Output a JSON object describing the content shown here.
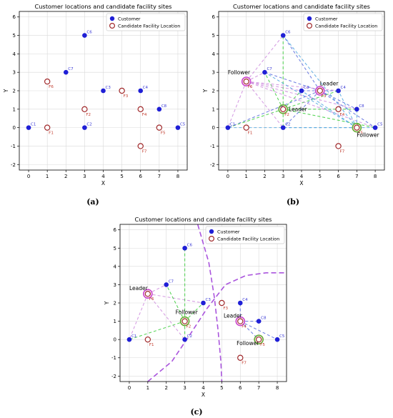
{
  "chart_data": [
    {
      "panel": "a",
      "type": "scatter",
      "title": "Customer locations and candidate facility sites",
      "xlabel": "X",
      "ylabel": "Y",
      "xlim": [
        -0.5,
        8.5
      ],
      "ylim": [
        -2.3,
        6.3
      ],
      "xticks": [
        0,
        1,
        2,
        3,
        4,
        5,
        6,
        7,
        8
      ],
      "yticks": [
        -2,
        -1,
        0,
        1,
        2,
        3,
        4,
        5,
        6
      ],
      "grid": true,
      "legend": {
        "position": "top-right",
        "entries": [
          "Customer",
          "Candidate Facility Location"
        ]
      },
      "customers": [
        {
          "name": "C1",
          "x": 0,
          "y": 0
        },
        {
          "name": "C2",
          "x": 3,
          "y": 0
        },
        {
          "name": "C3",
          "x": 4,
          "y": 2
        },
        {
          "name": "C4",
          "x": 6,
          "y": 2
        },
        {
          "name": "C5",
          "x": 8,
          "y": 0
        },
        {
          "name": "C6",
          "x": 3,
          "y": 5
        },
        {
          "name": "C7",
          "x": 2,
          "y": 3
        },
        {
          "name": "C8",
          "x": 7,
          "y": 1
        }
      ],
      "facilities": [
        {
          "name": "F1",
          "x": 1,
          "y": 0
        },
        {
          "name": "F2",
          "x": 3,
          "y": 1
        },
        {
          "name": "F3",
          "x": 5,
          "y": 2
        },
        {
          "name": "F4",
          "x": 6,
          "y": 1
        },
        {
          "name": "F5",
          "x": 7,
          "y": 0
        },
        {
          "name": "F6",
          "x": 1,
          "y": 2.5
        },
        {
          "name": "F7",
          "x": 6,
          "y": -1
        }
      ],
      "annotations": [],
      "connections": [],
      "curves": []
    },
    {
      "panel": "b",
      "type": "scatter",
      "title": "Customer locations and candidate facility sites",
      "xlabel": "X",
      "ylabel": "Y",
      "xlim": [
        -0.5,
        8.5
      ],
      "ylim": [
        -2.3,
        6.3
      ],
      "xticks": [
        0,
        1,
        2,
        3,
        4,
        5,
        6,
        7,
        8
      ],
      "yticks": [
        -2,
        -1,
        0,
        1,
        2,
        3,
        4,
        5,
        6
      ],
      "grid": true,
      "legend": {
        "position": "top-right",
        "entries": [
          "Customer",
          "Candidate Facility Location"
        ]
      },
      "customers": [
        {
          "name": "C1",
          "x": 0,
          "y": 0
        },
        {
          "name": "C2",
          "x": 3,
          "y": 0
        },
        {
          "name": "C3",
          "x": 4,
          "y": 2
        },
        {
          "name": "C4",
          "x": 6,
          "y": 2
        },
        {
          "name": "C5",
          "x": 8,
          "y": 0
        },
        {
          "name": "C6",
          "x": 3,
          "y": 5
        },
        {
          "name": "C7",
          "x": 2,
          "y": 3
        },
        {
          "name": "C8",
          "x": 7,
          "y": 1
        }
      ],
      "facilities": [
        {
          "name": "F1",
          "x": 1,
          "y": 0
        },
        {
          "name": "F2",
          "x": 3,
          "y": 1
        },
        {
          "name": "F3",
          "x": 5,
          "y": 2
        },
        {
          "name": "F4",
          "x": 6,
          "y": 1
        },
        {
          "name": "F5",
          "x": 7,
          "y": 0
        },
        {
          "name": "F6",
          "x": 1,
          "y": 2.5
        },
        {
          "name": "F7",
          "x": 6,
          "y": -1
        }
      ],
      "annotations": [
        {
          "text": "Follower",
          "x": 0,
          "y": 2.9
        },
        {
          "text": "Leader",
          "x": 5,
          "y": 2.3
        },
        {
          "text": "Leader",
          "x": 3.3,
          "y": 0.9
        },
        {
          "text": "Follower",
          "x": 7,
          "y": -0.5
        }
      ],
      "connections": [
        {
          "from": [
            3,
            1
          ],
          "to": [
            0,
            0
          ],
          "color": "#33cc33"
        },
        {
          "from": [
            3,
            1
          ],
          "to": [
            3,
            0
          ],
          "color": "#33cc33"
        },
        {
          "from": [
            3,
            1
          ],
          "to": [
            3,
            5
          ],
          "color": "#33cc33"
        },
        {
          "from": [
            3,
            1
          ],
          "to": [
            2,
            3
          ],
          "color": "#33cc33"
        },
        {
          "from": [
            3,
            1
          ],
          "to": [
            4,
            2
          ],
          "color": "#33cc33"
        },
        {
          "from": [
            3,
            1
          ],
          "to": [
            6,
            2
          ],
          "color": "#33cc33"
        },
        {
          "from": [
            3,
            1
          ],
          "to": [
            8,
            0
          ],
          "color": "#33cc33"
        },
        {
          "from": [
            3,
            1
          ],
          "to": [
            7,
            1
          ],
          "color": "#33cc33"
        },
        {
          "from": [
            5,
            2
          ],
          "to": [
            0,
            0
          ],
          "color": "#5566dd"
        },
        {
          "from": [
            5,
            2
          ],
          "to": [
            3,
            0
          ],
          "color": "#5566dd"
        },
        {
          "from": [
            5,
            2
          ],
          "to": [
            3,
            5
          ],
          "color": "#5566dd"
        },
        {
          "from": [
            5,
            2
          ],
          "to": [
            2,
            3
          ],
          "color": "#5566dd"
        },
        {
          "from": [
            5,
            2
          ],
          "to": [
            4,
            2
          ],
          "color": "#5566dd"
        },
        {
          "from": [
            5,
            2
          ],
          "to": [
            6,
            2
          ],
          "color": "#5566dd"
        },
        {
          "from": [
            5,
            2
          ],
          "to": [
            8,
            0
          ],
          "color": "#5566dd"
        },
        {
          "from": [
            5,
            2
          ],
          "to": [
            7,
            1
          ],
          "color": "#5566dd"
        },
        {
          "from": [
            1,
            2.5
          ],
          "to": [
            0,
            0
          ],
          "color": "#cc88dd"
        },
        {
          "from": [
            1,
            2.5
          ],
          "to": [
            3,
            0
          ],
          "color": "#cc88dd"
        },
        {
          "from": [
            1,
            2.5
          ],
          "to": [
            3,
            5
          ],
          "color": "#cc88dd"
        },
        {
          "from": [
            1,
            2.5
          ],
          "to": [
            2,
            3
          ],
          "color": "#cc88dd"
        },
        {
          "from": [
            1,
            2.5
          ],
          "to": [
            4,
            2
          ],
          "color": "#cc88dd"
        },
        {
          "from": [
            1,
            2.5
          ],
          "to": [
            6,
            2
          ],
          "color": "#cc88dd"
        },
        {
          "from": [
            1,
            2.5
          ],
          "to": [
            8,
            0
          ],
          "color": "#cc88dd"
        },
        {
          "from": [
            1,
            2.5
          ],
          "to": [
            7,
            1
          ],
          "color": "#cc88dd"
        },
        {
          "from": [
            7,
            0
          ],
          "to": [
            0,
            0
          ],
          "color": "#4aa3df"
        },
        {
          "from": [
            7,
            0
          ],
          "to": [
            3,
            0
          ],
          "color": "#4aa3df"
        },
        {
          "from": [
            7,
            0
          ],
          "to": [
            3,
            5
          ],
          "color": "#4aa3df"
        },
        {
          "from": [
            7,
            0
          ],
          "to": [
            2,
            3
          ],
          "color": "#4aa3df"
        },
        {
          "from": [
            7,
            0
          ],
          "to": [
            4,
            2
          ],
          "color": "#4aa3df"
        },
        {
          "from": [
            7,
            0
          ],
          "to": [
            6,
            2
          ],
          "color": "#4aa3df"
        },
        {
          "from": [
            7,
            0
          ],
          "to": [
            8,
            0
          ],
          "color": "#4aa3df"
        },
        {
          "from": [
            7,
            0
          ],
          "to": [
            7,
            1
          ],
          "color": "#4aa3df"
        }
      ],
      "highlighted_facilities": [
        {
          "x": 1,
          "y": 2.5,
          "color": "#cc44cc"
        },
        {
          "x": 5,
          "y": 2,
          "color": "#cc44cc"
        },
        {
          "x": 3,
          "y": 1,
          "color": "#66aa33"
        },
        {
          "x": 7,
          "y": 0,
          "color": "#66aa33"
        }
      ],
      "curves": []
    },
    {
      "panel": "c",
      "type": "scatter",
      "title": "Customer locations and candidate facility sites",
      "xlabel": "X",
      "ylabel": "Y",
      "xlim": [
        -0.5,
        8.5
      ],
      "ylim": [
        -2.3,
        6.3
      ],
      "xticks": [
        0,
        1,
        2,
        3,
        4,
        5,
        6,
        7,
        8
      ],
      "yticks": [
        -2,
        -1,
        0,
        1,
        2,
        3,
        4,
        5,
        6
      ],
      "grid": true,
      "legend": {
        "position": "top-right",
        "entries": [
          "Customer",
          "Candidate Facility Location"
        ]
      },
      "customers": [
        {
          "name": "C1",
          "x": 0,
          "y": 0
        },
        {
          "name": "C2",
          "x": 3,
          "y": 0
        },
        {
          "name": "C3",
          "x": 4,
          "y": 2
        },
        {
          "name": "C4",
          "x": 6,
          "y": 2
        },
        {
          "name": "C5",
          "x": 8,
          "y": 0
        },
        {
          "name": "C6",
          "x": 3,
          "y": 5
        },
        {
          "name": "C7",
          "x": 2,
          "y": 3
        },
        {
          "name": "C8",
          "x": 7,
          "y": 1
        }
      ],
      "facilities": [
        {
          "name": "F1",
          "x": 1,
          "y": 0
        },
        {
          "name": "F2",
          "x": 3,
          "y": 1
        },
        {
          "name": "F3",
          "x": 5,
          "y": 2
        },
        {
          "name": "F4",
          "x": 6,
          "y": 1
        },
        {
          "name": "F5",
          "x": 7,
          "y": 0
        },
        {
          "name": "F6",
          "x": 1,
          "y": 2.5
        },
        {
          "name": "F7",
          "x": 6,
          "y": -1
        }
      ],
      "annotations": [
        {
          "text": "Leader",
          "x": 0,
          "y": 2.7
        },
        {
          "text": "Follower",
          "x": 2.5,
          "y": 1.4
        },
        {
          "text": "Leader",
          "x": 5.1,
          "y": 1.2
        },
        {
          "text": "Follower",
          "x": 5.8,
          "y": -0.3
        }
      ],
      "connections": [
        {
          "from": [
            1,
            2.5
          ],
          "to": [
            0,
            0
          ],
          "color": "#cc88dd"
        },
        {
          "from": [
            1,
            2.5
          ],
          "to": [
            2,
            3
          ],
          "color": "#cc88dd"
        },
        {
          "from": [
            1,
            2.5
          ],
          "to": [
            3,
            0
          ],
          "color": "#cc88dd"
        },
        {
          "from": [
            1,
            2.5
          ],
          "to": [
            4,
            2
          ],
          "color": "#cc88dd"
        },
        {
          "from": [
            3,
            1
          ],
          "to": [
            0,
            0
          ],
          "color": "#33cc33"
        },
        {
          "from": [
            3,
            1
          ],
          "to": [
            3,
            5
          ],
          "color": "#33cc33"
        },
        {
          "from": [
            3,
            1
          ],
          "to": [
            2,
            3
          ],
          "color": "#33cc33"
        },
        {
          "from": [
            3,
            1
          ],
          "to": [
            4,
            2
          ],
          "color": "#33cc33"
        },
        {
          "from": [
            3,
            1
          ],
          "to": [
            3,
            0
          ],
          "color": "#33cc33"
        },
        {
          "from": [
            6,
            1
          ],
          "to": [
            6,
            2
          ],
          "color": "#5566dd"
        },
        {
          "from": [
            6,
            1
          ],
          "to": [
            7,
            1
          ],
          "color": "#5566dd"
        },
        {
          "from": [
            6,
            1
          ],
          "to": [
            8,
            0
          ],
          "color": "#5566dd"
        },
        {
          "from": [
            6,
            1
          ],
          "to": [
            7,
            0
          ],
          "color": "#5566dd"
        }
      ],
      "highlighted_facilities": [
        {
          "x": 1,
          "y": 2.5,
          "color": "#cc44cc"
        },
        {
          "x": 6,
          "y": 1,
          "color": "#cc44cc"
        },
        {
          "x": 3,
          "y": 1,
          "color": "#66aa33"
        },
        {
          "x": 7,
          "y": 0,
          "color": "#66aa33"
        }
      ],
      "curves": [
        {
          "color": "#aa55dd",
          "points": [
            [
              1,
              -2.3
            ],
            [
              2.3,
              -1.2
            ],
            [
              3.3,
              0.3
            ],
            [
              4.2,
              1.7
            ],
            [
              5.2,
              3.0
            ],
            [
              6.3,
              3.5
            ],
            [
              7.4,
              3.65
            ],
            [
              8.5,
              3.65
            ]
          ]
        },
        {
          "color": "#aa55dd",
          "points": [
            [
              3.7,
              6.3
            ],
            [
              4.3,
              4.2
            ],
            [
              4.6,
              2.3
            ],
            [
              4.8,
              0.5
            ],
            [
              4.95,
              -1.2
            ],
            [
              5.0,
              -2.3
            ]
          ]
        }
      ]
    }
  ],
  "captions": [
    "(a)",
    "(b)",
    "(c)"
  ],
  "colors": {
    "customer": "#1f1fd6",
    "facility_edge": "#a0282a",
    "facility_label": "#c0392b",
    "customer_label": "#3a3ad6",
    "grid": "#d9d9d9"
  }
}
